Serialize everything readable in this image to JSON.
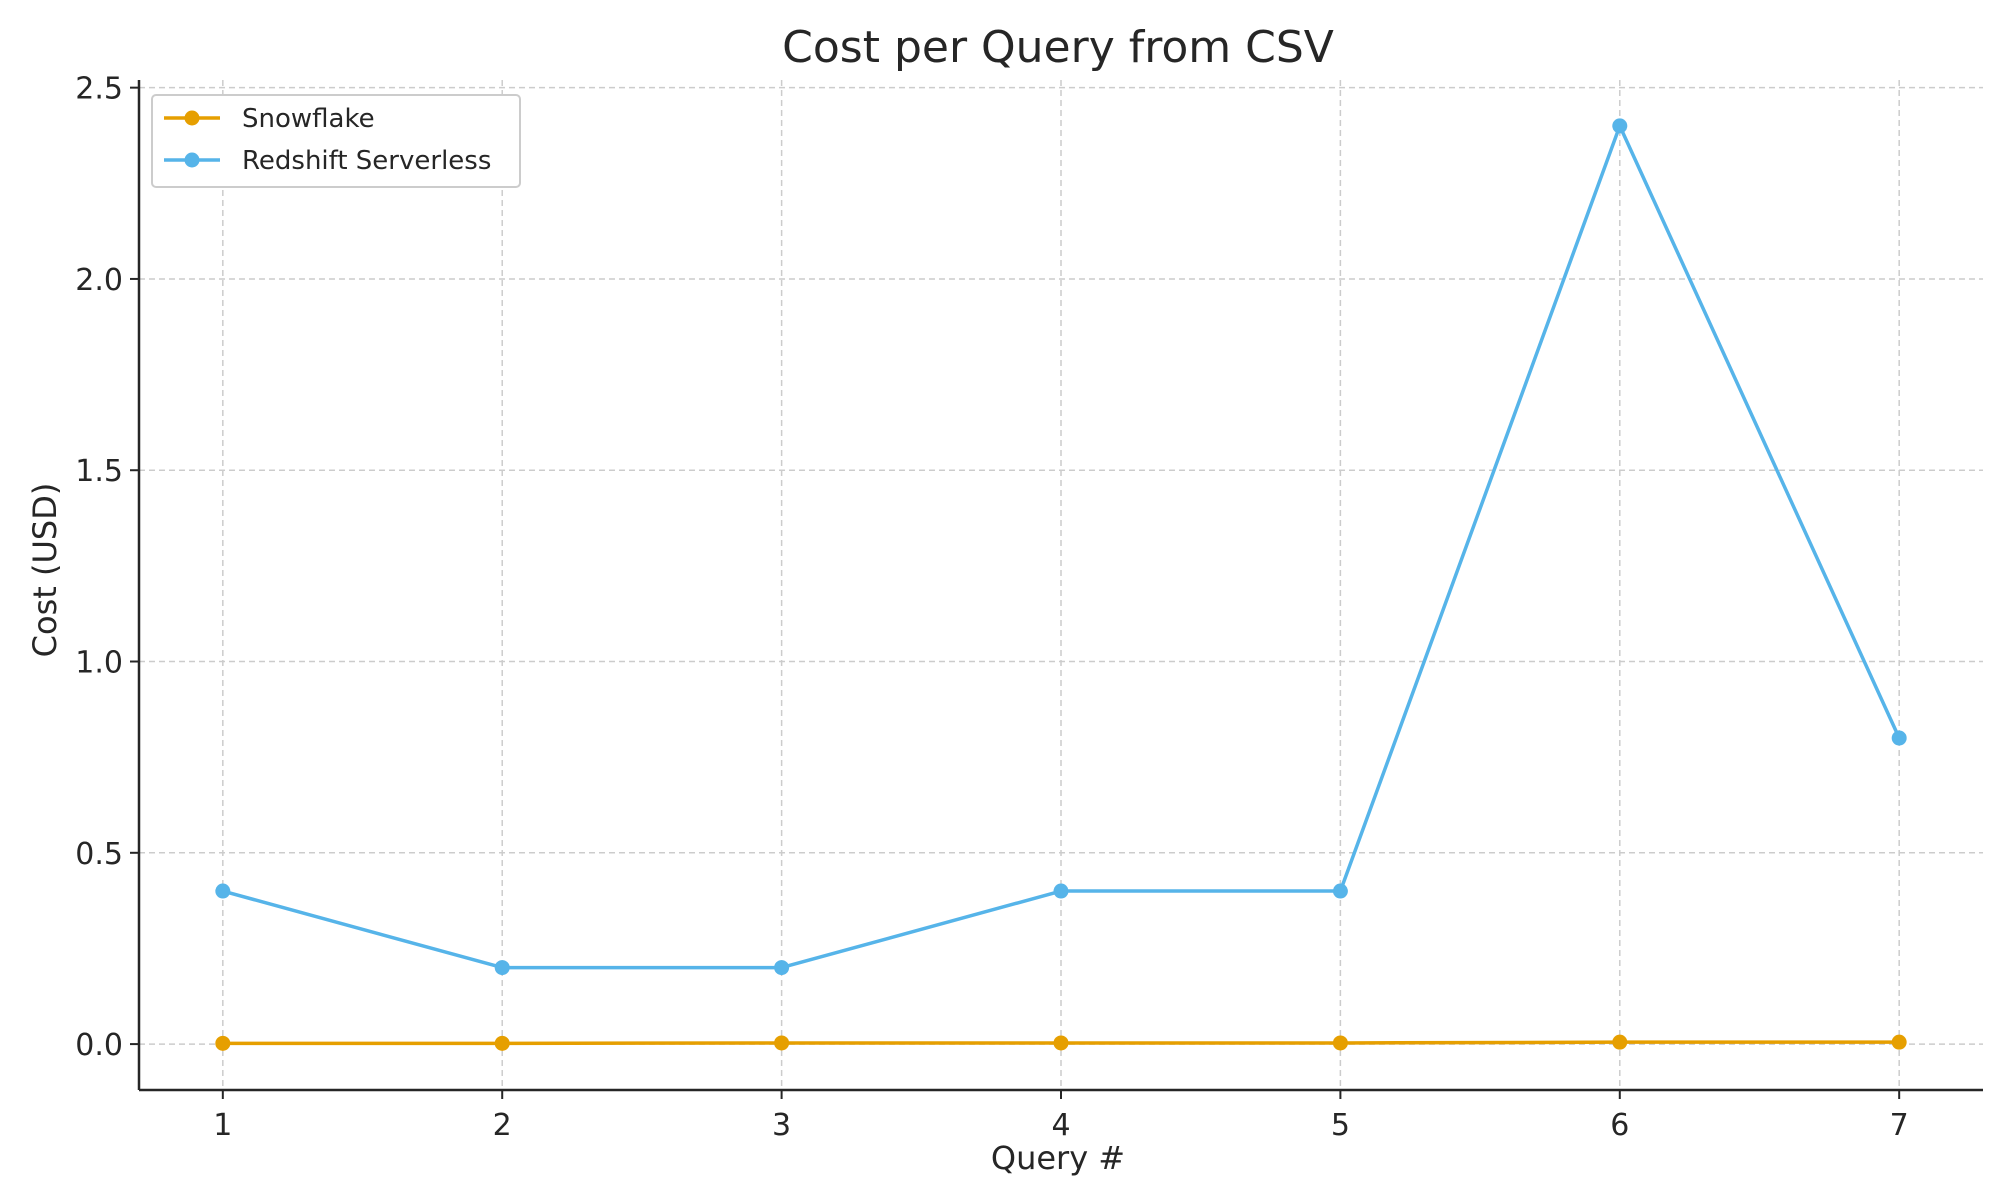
{
  "chart_data": {
    "type": "line",
    "title": "Cost per Query from CSV",
    "xlabel": "Query #",
    "ylabel": "Cost (USD)",
    "x": [
      1,
      2,
      3,
      4,
      5,
      6,
      7
    ],
    "xticks": [
      "1",
      "2",
      "3",
      "4",
      "5",
      "6",
      "7"
    ],
    "yticks": [
      "0.0",
      "0.5",
      "1.0",
      "1.5",
      "2.0",
      "2.5"
    ],
    "ylim": [
      -0.12,
      2.52
    ],
    "xlim": [
      0.7,
      7.3
    ],
    "grid": true,
    "legend_position": "top-left",
    "series": [
      {
        "name": "Snowflake",
        "color": "#E69F00",
        "values": [
          0.002,
          0.002,
          0.003,
          0.003,
          0.003,
          0.005,
          0.005
        ]
      },
      {
        "name": "Redshift Serverless",
        "color": "#56B4E9",
        "values": [
          0.4,
          0.2,
          0.2,
          0.4,
          0.4,
          2.4,
          0.8
        ]
      }
    ]
  }
}
